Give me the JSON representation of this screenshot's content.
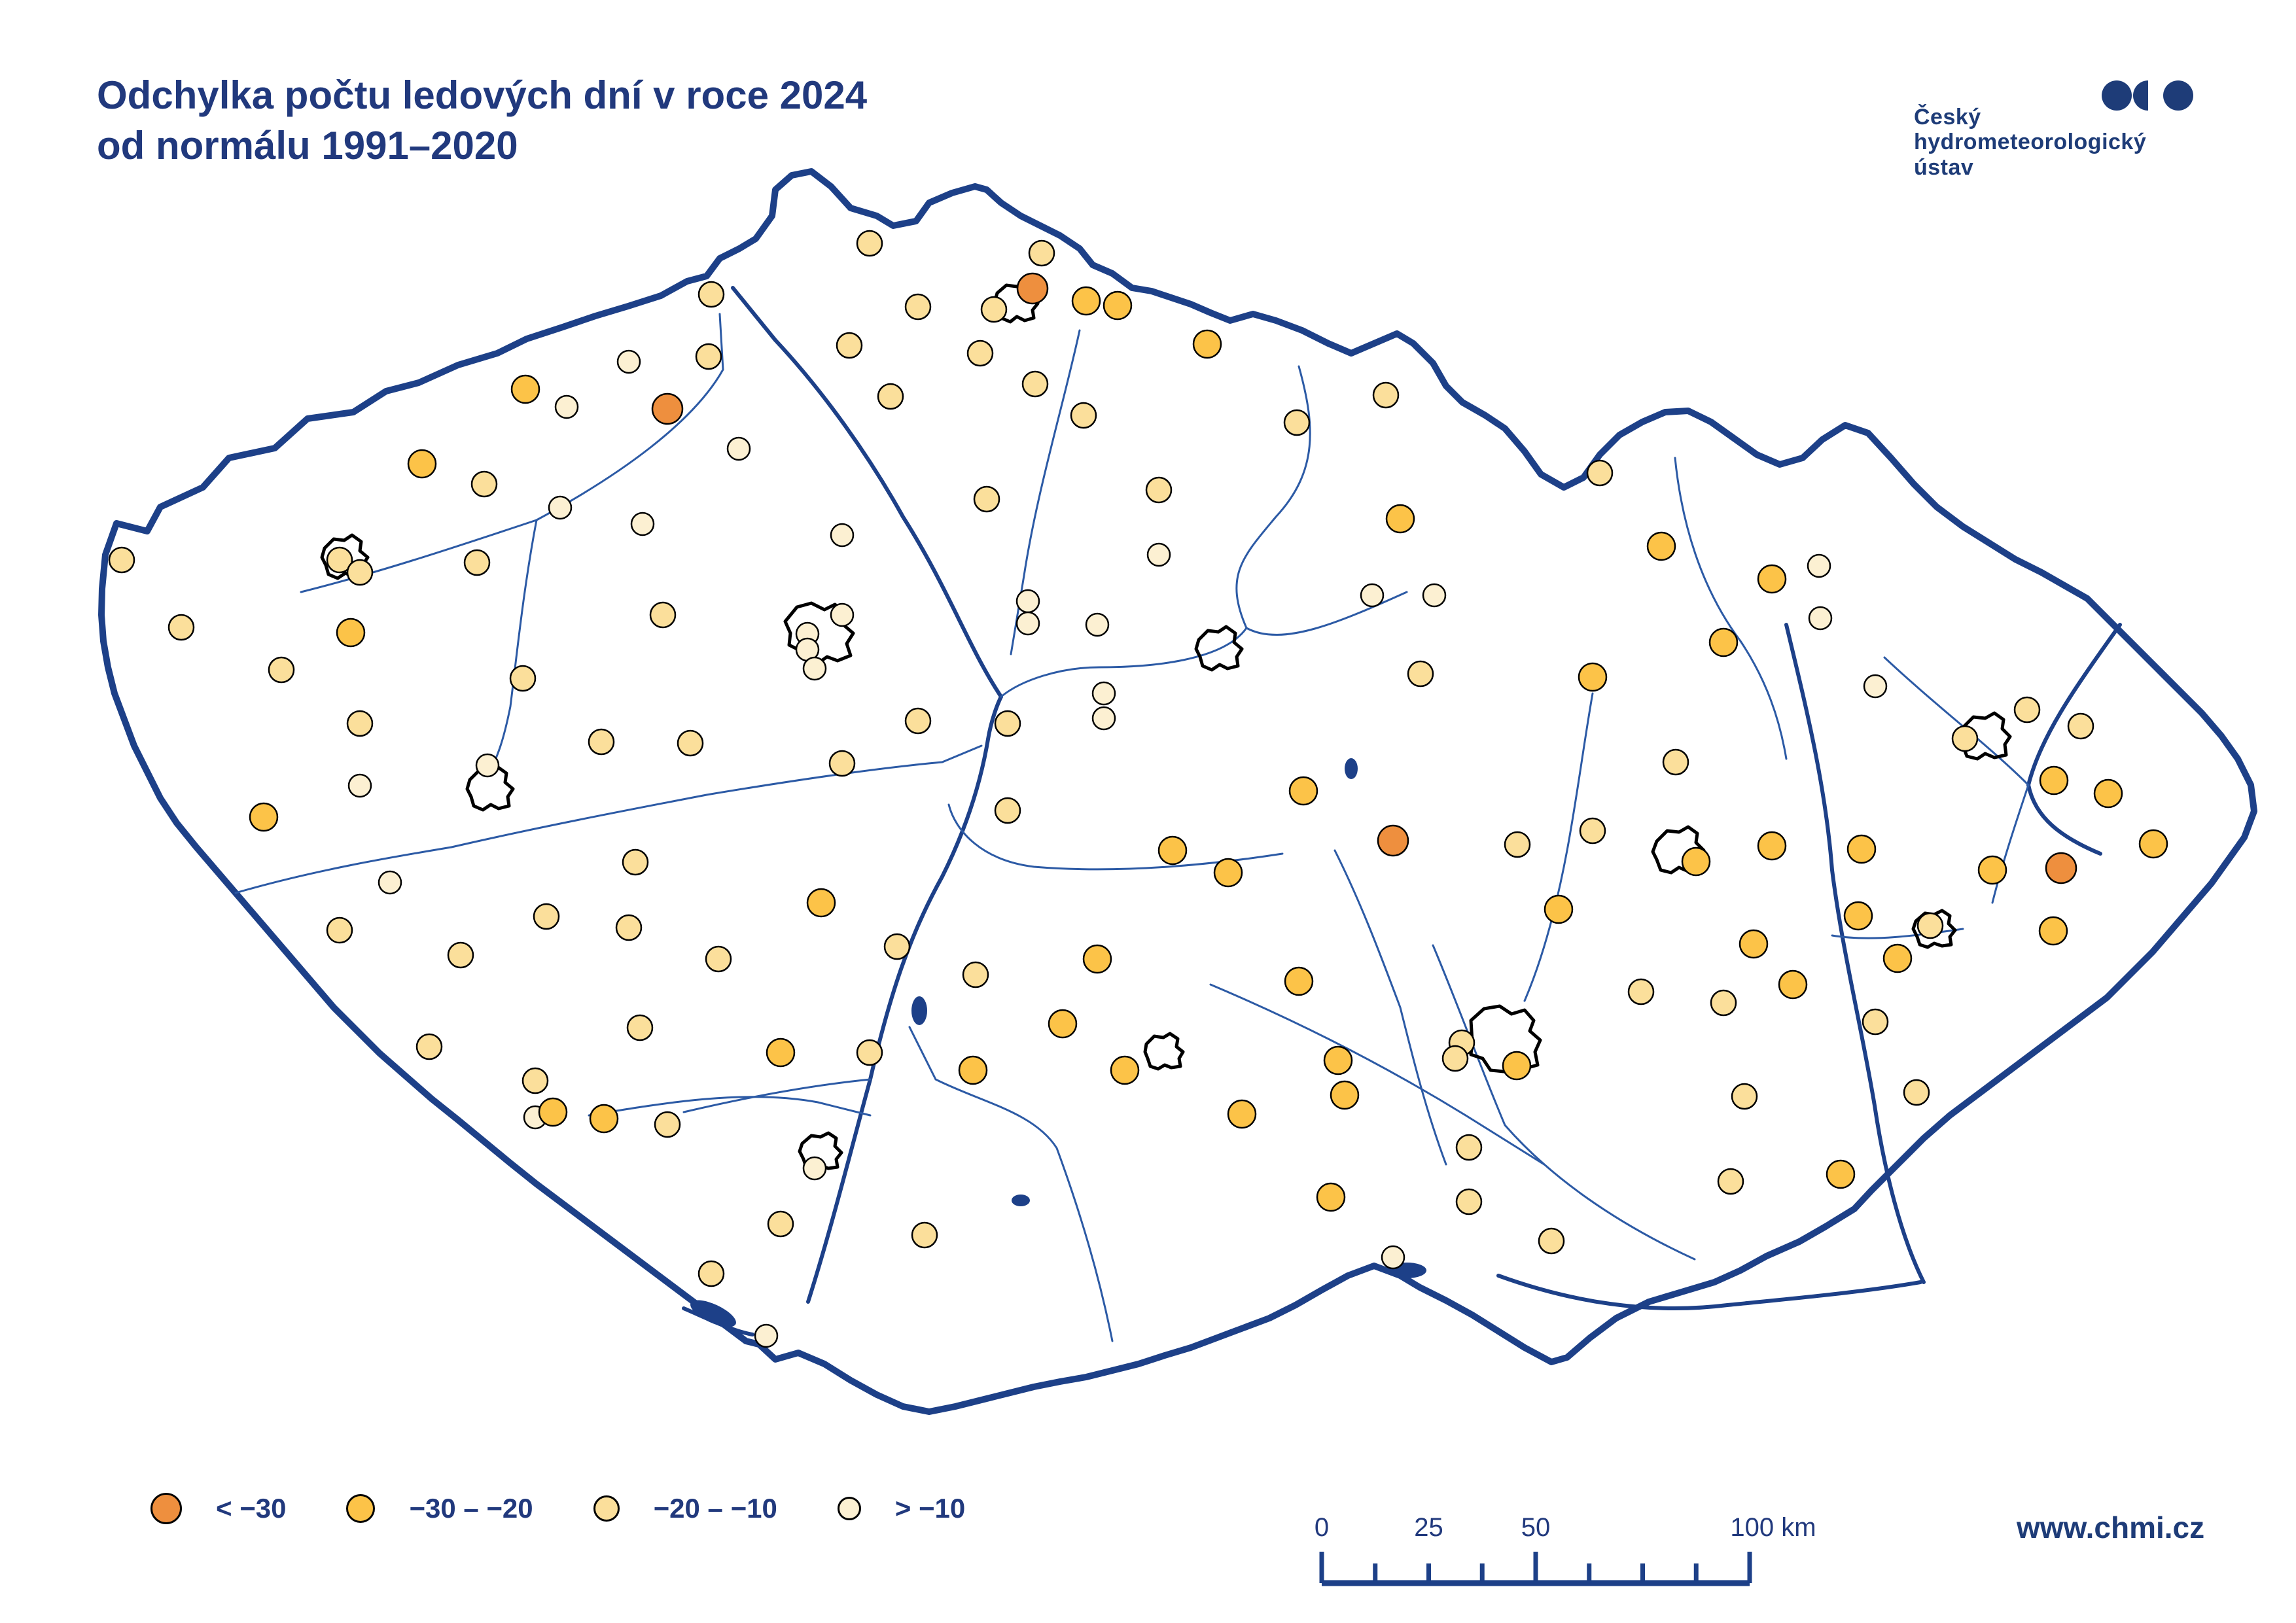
{
  "title": {
    "line1": "Odchylka počtu ledových dní v roce 2024",
    "line2": "od normálu 1991–2020"
  },
  "logo": {
    "lines": [
      "Český",
      "hydrometeorologický",
      "ústav"
    ],
    "color": "#1E3C78"
  },
  "footer": {
    "url": "www.chmi.cz"
  },
  "legend": {
    "items": [
      {
        "label": "< −30",
        "color": "#EE8F3E",
        "diameter": 48
      },
      {
        "label": "−30 – −20",
        "color": "#FCC348",
        "diameter": 44
      },
      {
        "label": "−20 – −10",
        "color": "#FBDF9B",
        "diameter": 40
      },
      {
        "label": "> −10",
        "color": "#FCF0D2",
        "diameter": 36
      }
    ]
  },
  "scalebar": {
    "unit": "km",
    "length_km": 100,
    "tick_km": [
      0,
      12.5,
      25,
      37.5,
      50,
      62.5,
      75,
      87.5,
      100
    ],
    "major_km": [
      0,
      50,
      100
    ],
    "labels": [
      {
        "text": "0",
        "km": 0
      },
      {
        "text": "25",
        "km": 25
      },
      {
        "text": "50",
        "km": 50
      },
      {
        "text": "100 km",
        "km": 100
      }
    ]
  },
  "map": {
    "colors": {
      "border": "#1D4088",
      "river": "#2C5AA5",
      "city_outline": "#000000",
      "dot_stroke": "#000000"
    },
    "categories": {
      "1": {
        "name": "< −30",
        "color": "#EE8F3E",
        "radius": 23
      },
      "2": {
        "name": "−30 – −20",
        "color": "#FCC348",
        "radius": 21
      },
      "3": {
        "name": "−20 – −10",
        "color": "#FBDF9B",
        "radius": 19
      },
      "4": {
        "name": "> −10",
        "color": "#FCF0D2",
        "radius": 17
      }
    },
    "stations": [
      [
        1329,
        372,
        3
      ],
      [
        1592,
        387,
        3
      ],
      [
        1578,
        441,
        1
      ],
      [
        1660,
        460,
        2
      ],
      [
        1708,
        467,
        2
      ],
      [
        1403,
        469,
        3
      ],
      [
        1519,
        473,
        3
      ],
      [
        1087,
        450,
        3
      ],
      [
        1845,
        526,
        2
      ],
      [
        1083,
        545,
        3
      ],
      [
        961,
        553,
        4
      ],
      [
        1298,
        528,
        3
      ],
      [
        866,
        622,
        4
      ],
      [
        803,
        595,
        2
      ],
      [
        1020,
        625,
        1
      ],
      [
        1361,
        606,
        3
      ],
      [
        1498,
        540,
        3
      ],
      [
        1582,
        587,
        3
      ],
      [
        1656,
        635,
        3
      ],
      [
        1982,
        646,
        3
      ],
      [
        2118,
        604,
        3
      ],
      [
        2445,
        723,
        3
      ],
      [
        2539,
        835,
        2
      ],
      [
        2140,
        793,
        2
      ],
      [
        1771,
        749,
        3
      ],
      [
        1508,
        763,
        3
      ],
      [
        1129,
        686,
        4
      ],
      [
        645,
        709,
        2
      ],
      [
        740,
        740,
        3
      ],
      [
        856,
        776,
        4
      ],
      [
        982,
        801,
        4
      ],
      [
        729,
        860,
        3
      ],
      [
        519,
        856,
        3
      ],
      [
        550,
        875,
        3
      ],
      [
        186,
        856,
        3
      ],
      [
        1287,
        818,
        4
      ],
      [
        1771,
        848,
        4
      ],
      [
        2097,
        910,
        4
      ],
      [
        2192,
        910,
        4
      ],
      [
        2708,
        885,
        2
      ],
      [
        2780,
        865,
        4
      ],
      [
        277,
        959,
        3
      ],
      [
        536,
        967,
        2
      ],
      [
        430,
        1024,
        3
      ],
      [
        799,
        1037,
        3
      ],
      [
        1013,
        940,
        3
      ],
      [
        1287,
        940,
        4
      ],
      [
        1234,
        969,
        4
      ],
      [
        1234,
        993,
        4
      ],
      [
        1245,
        1022,
        4
      ],
      [
        1571,
        919,
        4
      ],
      [
        1571,
        953,
        4
      ],
      [
        1677,
        955,
        4
      ],
      [
        1687,
        1060,
        4
      ],
      [
        2171,
        1030,
        3
      ],
      [
        2434,
        1035,
        2
      ],
      [
        2634,
        982,
        2
      ],
      [
        2866,
        1049,
        4
      ],
      [
        3098,
        1085,
        3
      ],
      [
        3180,
        1110,
        3
      ],
      [
        3003,
        1129,
        3
      ],
      [
        2782,
        945,
        4
      ],
      [
        550,
        1106,
        3
      ],
      [
        919,
        1134,
        3
      ],
      [
        1055,
        1136,
        3
      ],
      [
        1403,
        1102,
        3
      ],
      [
        1540,
        1106,
        3
      ],
      [
        1687,
        1098,
        4
      ],
      [
        1287,
        1167,
        3
      ],
      [
        745,
        1170,
        4
      ],
      [
        550,
        1201,
        4
      ],
      [
        403,
        1249,
        2
      ],
      [
        1540,
        1239,
        3
      ],
      [
        1792,
        1300,
        2
      ],
      [
        1877,
        1334,
        2
      ],
      [
        1992,
        1209,
        2
      ],
      [
        2129,
        1285,
        1
      ],
      [
        2319,
        1291,
        3
      ],
      [
        2434,
        1270,
        3
      ],
      [
        2561,
        1165,
        3
      ],
      [
        2592,
        1317,
        2
      ],
      [
        2708,
        1293,
        2
      ],
      [
        2845,
        1298,
        2
      ],
      [
        1255,
        1380,
        2
      ],
      [
        835,
        1401,
        3
      ],
      [
        961,
        1418,
        3
      ],
      [
        519,
        1422,
        3
      ],
      [
        704,
        1460,
        3
      ],
      [
        1098,
        1466,
        3
      ],
      [
        1371,
        1447,
        3
      ],
      [
        1491,
        1490,
        3
      ],
      [
        1677,
        1466,
        2
      ],
      [
        1985,
        1500,
        2
      ],
      [
        2382,
        1390,
        2
      ],
      [
        2840,
        1400,
        2
      ],
      [
        2950,
        1415,
        3
      ],
      [
        2680,
        1443,
        2
      ],
      [
        2740,
        1505,
        2
      ],
      [
        2900,
        1465,
        2
      ],
      [
        3045,
        1330,
        2
      ],
      [
        3139,
        1193,
        2
      ],
      [
        3222,
        1213,
        2
      ],
      [
        3291,
        1290,
        2
      ],
      [
        3150,
        1327,
        1
      ],
      [
        3138,
        1423,
        2
      ],
      [
        656,
        1600,
        3
      ],
      [
        978,
        1571,
        3
      ],
      [
        818,
        1652,
        3
      ],
      [
        818,
        1708,
        4
      ],
      [
        845,
        1700,
        2
      ],
      [
        923,
        1710,
        2
      ],
      [
        1020,
        1719,
        3
      ],
      [
        1193,
        1609,
        2
      ],
      [
        1329,
        1609,
        3
      ],
      [
        1487,
        1636,
        2
      ],
      [
        1624,
        1565,
        2
      ],
      [
        1719,
        1636,
        2
      ],
      [
        2045,
        1621,
        2
      ],
      [
        2055,
        1674,
        2
      ],
      [
        1898,
        1703,
        2
      ],
      [
        2234,
        1594,
        3
      ],
      [
        2224,
        1618,
        3
      ],
      [
        2318,
        1629,
        2
      ],
      [
        2508,
        1516,
        3
      ],
      [
        2634,
        1533,
        3
      ],
      [
        2866,
        1562,
        3
      ],
      [
        2666,
        1676,
        3
      ],
      [
        2929,
        1670,
        3
      ],
      [
        2813,
        1795,
        2
      ],
      [
        2645,
        1806,
        3
      ],
      [
        2245,
        1754,
        3
      ],
      [
        2034,
        1830,
        2
      ],
      [
        2245,
        1837,
        3
      ],
      [
        2129,
        1922,
        4
      ],
      [
        2371,
        1897,
        3
      ],
      [
        1245,
        1786,
        4
      ],
      [
        1193,
        1871,
        3
      ],
      [
        1413,
        1888,
        3
      ],
      [
        1087,
        1947,
        3
      ],
      [
        1171,
        2042,
        4
      ],
      [
        596,
        1349,
        4
      ],
      [
        971,
        1318,
        3
      ]
    ]
  }
}
